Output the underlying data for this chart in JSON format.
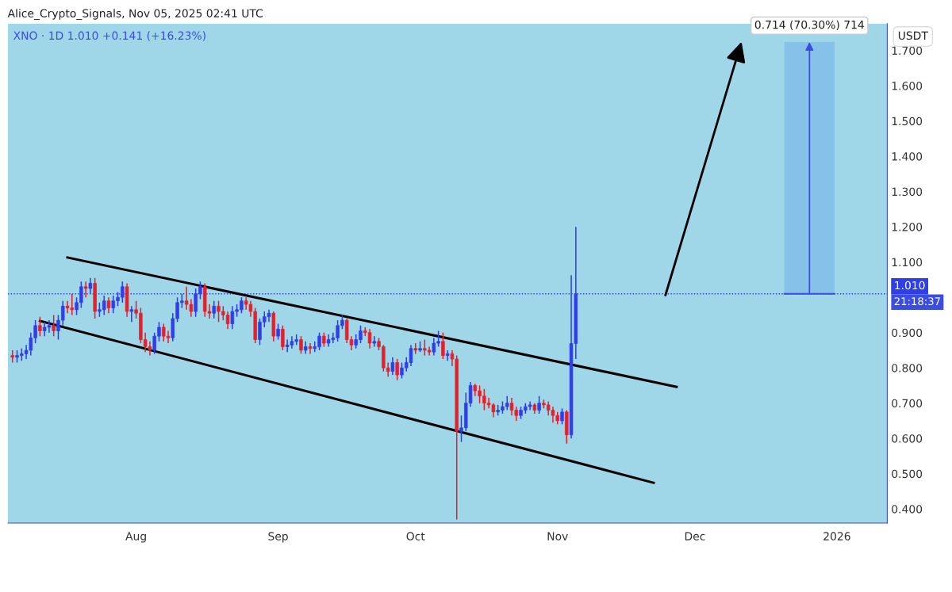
{
  "chart_data": {
    "type": "candlestick",
    "title": "Alice_Crypto_Signals, Nov 05, 2025 02:41 UTC",
    "subtitle": "XNO · 1D 1.010 +0.141 (+16.23%)",
    "ylabel": "USDT",
    "x": [
      "2025-07-05",
      "2025-07-06",
      "2025-07-07",
      "2025-07-08",
      "2025-07-09",
      "2025-07-10",
      "2025-07-11",
      "2025-07-12",
      "2025-07-13",
      "2025-07-14",
      "2025-07-15",
      "2025-07-16",
      "2025-07-17",
      "2025-07-18",
      "2025-07-19",
      "2025-07-20",
      "2025-07-21",
      "2025-07-22",
      "2025-07-23",
      "2025-07-24",
      "2025-07-25",
      "2025-07-26",
      "2025-07-27",
      "2025-07-28",
      "2025-07-29",
      "2025-07-30",
      "2025-07-31",
      "2025-08-01",
      "2025-08-02",
      "2025-08-03",
      "2025-08-04",
      "2025-08-05",
      "2025-08-06",
      "2025-08-07",
      "2025-08-08",
      "2025-08-09",
      "2025-08-10",
      "2025-08-11",
      "2025-08-12",
      "2025-08-13",
      "2025-08-14",
      "2025-08-15",
      "2025-08-16",
      "2025-08-17",
      "2025-08-18",
      "2025-08-19",
      "2025-08-20",
      "2025-08-21",
      "2025-08-22",
      "2025-08-23",
      "2025-08-24",
      "2025-08-25",
      "2025-08-26",
      "2025-08-27",
      "2025-08-28",
      "2025-08-29",
      "2025-08-30",
      "2025-08-31",
      "2025-09-01",
      "2025-09-02",
      "2025-09-03",
      "2025-09-04",
      "2025-09-05",
      "2025-09-06",
      "2025-09-07",
      "2025-09-08",
      "2025-09-09",
      "2025-09-10",
      "2025-09-11",
      "2025-09-12",
      "2025-09-13",
      "2025-09-14",
      "2025-09-15",
      "2025-09-16",
      "2025-09-17",
      "2025-09-18",
      "2025-09-19",
      "2025-09-20",
      "2025-09-21",
      "2025-09-22",
      "2025-09-23",
      "2025-09-24",
      "2025-09-25",
      "2025-09-26",
      "2025-09-27",
      "2025-09-28",
      "2025-09-29",
      "2025-09-30",
      "2025-10-01",
      "2025-10-02",
      "2025-10-03",
      "2025-10-04",
      "2025-10-05",
      "2025-10-06",
      "2025-10-07",
      "2025-10-08",
      "2025-10-09",
      "2025-10-10",
      "2025-10-11",
      "2025-10-12",
      "2025-10-13",
      "2025-10-14",
      "2025-10-15",
      "2025-10-16",
      "2025-10-17",
      "2025-10-18",
      "2025-10-19",
      "2025-10-20",
      "2025-10-21",
      "2025-10-22",
      "2025-10-23",
      "2025-10-24",
      "2025-10-25",
      "2025-10-26",
      "2025-10-27",
      "2025-10-28",
      "2025-10-29",
      "2025-10-30",
      "2025-10-31",
      "2025-11-01",
      "2025-11-02",
      "2025-11-03",
      "2025-11-04",
      "2025-11-05"
    ],
    "ohlc": [
      [
        0.835,
        0.85,
        0.815,
        0.83
      ],
      [
        0.83,
        0.85,
        0.815,
        0.835
      ],
      [
        0.835,
        0.855,
        0.82,
        0.84
      ],
      [
        0.84,
        0.865,
        0.825,
        0.85
      ],
      [
        0.85,
        0.9,
        0.835,
        0.885
      ],
      [
        0.885,
        0.935,
        0.87,
        0.92
      ],
      [
        0.92,
        0.945,
        0.89,
        0.905
      ],
      [
        0.905,
        0.93,
        0.89,
        0.915
      ],
      [
        0.915,
        0.935,
        0.9,
        0.92
      ],
      [
        0.92,
        0.95,
        0.89,
        0.905
      ],
      [
        0.905,
        0.95,
        0.88,
        0.935
      ],
      [
        0.935,
        0.99,
        0.92,
        0.975
      ],
      [
        0.975,
        0.99,
        0.955,
        0.97
      ],
      [
        0.97,
        1.01,
        0.95,
        0.965
      ],
      [
        0.965,
        1.0,
        0.95,
        0.985
      ],
      [
        0.985,
        1.045,
        0.97,
        1.03
      ],
      [
        1.03,
        1.045,
        1.0,
        1.025
      ],
      [
        1.025,
        1.055,
        1.01,
        1.04
      ],
      [
        1.04,
        1.055,
        0.94,
        0.96
      ],
      [
        0.96,
        0.985,
        0.945,
        0.965
      ],
      [
        0.965,
        1.005,
        0.95,
        0.99
      ],
      [
        0.99,
        1.0,
        0.955,
        0.97
      ],
      [
        0.97,
        1.005,
        0.955,
        0.99
      ],
      [
        0.99,
        1.015,
        0.975,
        1.0
      ],
      [
        1.0,
        1.045,
        0.985,
        1.03
      ],
      [
        1.03,
        1.04,
        0.945,
        0.96
      ],
      [
        0.96,
        0.975,
        0.93,
        0.965
      ],
      [
        0.965,
        0.99,
        0.94,
        0.955
      ],
      [
        0.955,
        0.97,
        0.87,
        0.88
      ],
      [
        0.88,
        0.9,
        0.845,
        0.86
      ],
      [
        0.86,
        0.875,
        0.835,
        0.85
      ],
      [
        0.85,
        0.9,
        0.84,
        0.89
      ],
      [
        0.89,
        0.93,
        0.875,
        0.915
      ],
      [
        0.915,
        0.925,
        0.875,
        0.89
      ],
      [
        0.89,
        0.905,
        0.87,
        0.885
      ],
      [
        0.885,
        0.955,
        0.875,
        0.94
      ],
      [
        0.94,
        1.0,
        0.93,
        0.985
      ],
      [
        0.985,
        1.01,
        0.97,
        0.99
      ],
      [
        0.99,
        1.03,
        0.965,
        0.98
      ],
      [
        0.98,
        0.995,
        0.945,
        0.96
      ],
      [
        0.96,
        1.025,
        0.945,
        1.01
      ],
      [
        1.01,
        1.045,
        0.995,
        1.03
      ],
      [
        1.03,
        1.04,
        0.945,
        0.96
      ],
      [
        0.96,
        0.98,
        0.94,
        0.955
      ],
      [
        0.955,
        0.99,
        0.94,
        0.975
      ],
      [
        0.975,
        0.99,
        0.93,
        0.96
      ],
      [
        0.96,
        0.975,
        0.935,
        0.95
      ],
      [
        0.95,
        0.96,
        0.91,
        0.925
      ],
      [
        0.925,
        0.975,
        0.91,
        0.96
      ],
      [
        0.96,
        0.98,
        0.945,
        0.965
      ],
      [
        0.965,
        1.0,
        0.955,
        0.99
      ],
      [
        0.99,
        1.0,
        0.965,
        0.98
      ],
      [
        0.98,
        0.99,
        0.945,
        0.96
      ],
      [
        0.96,
        0.97,
        0.87,
        0.88
      ],
      [
        0.88,
        0.94,
        0.865,
        0.93
      ],
      [
        0.93,
        0.96,
        0.915,
        0.945
      ],
      [
        0.945,
        0.965,
        0.93,
        0.955
      ],
      [
        0.955,
        0.96,
        0.875,
        0.89
      ],
      [
        0.89,
        0.925,
        0.88,
        0.91
      ],
      [
        0.91,
        0.92,
        0.85,
        0.86
      ],
      [
        0.86,
        0.88,
        0.845,
        0.865
      ],
      [
        0.865,
        0.89,
        0.855,
        0.875
      ],
      [
        0.875,
        0.895,
        0.865,
        0.88
      ],
      [
        0.88,
        0.89,
        0.84,
        0.85
      ],
      [
        0.85,
        0.875,
        0.84,
        0.86
      ],
      [
        0.86,
        0.87,
        0.84,
        0.855
      ],
      [
        0.855,
        0.875,
        0.845,
        0.86
      ],
      [
        0.86,
        0.9,
        0.85,
        0.89
      ],
      [
        0.89,
        0.9,
        0.86,
        0.87
      ],
      [
        0.87,
        0.895,
        0.86,
        0.88
      ],
      [
        0.88,
        0.9,
        0.87,
        0.885
      ],
      [
        0.885,
        0.935,
        0.875,
        0.92
      ],
      [
        0.92,
        0.95,
        0.91,
        0.935
      ],
      [
        0.935,
        0.94,
        0.87,
        0.88
      ],
      [
        0.88,
        0.89,
        0.85,
        0.865
      ],
      [
        0.865,
        0.895,
        0.855,
        0.88
      ],
      [
        0.88,
        0.92,
        0.87,
        0.905
      ],
      [
        0.905,
        0.915,
        0.89,
        0.9
      ],
      [
        0.9,
        0.91,
        0.855,
        0.87
      ],
      [
        0.87,
        0.89,
        0.86,
        0.875
      ],
      [
        0.875,
        0.885,
        0.85,
        0.86
      ],
      [
        0.86,
        0.865,
        0.79,
        0.8
      ],
      [
        0.8,
        0.815,
        0.775,
        0.79
      ],
      [
        0.79,
        0.83,
        0.78,
        0.815
      ],
      [
        0.815,
        0.825,
        0.765,
        0.78
      ],
      [
        0.78,
        0.815,
        0.77,
        0.8
      ],
      [
        0.8,
        0.83,
        0.79,
        0.815
      ],
      [
        0.815,
        0.865,
        0.805,
        0.855
      ],
      [
        0.855,
        0.87,
        0.84,
        0.85
      ],
      [
        0.85,
        0.875,
        0.845,
        0.855
      ],
      [
        0.855,
        0.88,
        0.835,
        0.85
      ],
      [
        0.85,
        0.86,
        0.835,
        0.845
      ],
      [
        0.845,
        0.885,
        0.835,
        0.87
      ],
      [
        0.87,
        0.905,
        0.86,
        0.875
      ],
      [
        0.875,
        0.9,
        0.825,
        0.835
      ],
      [
        0.835,
        0.85,
        0.82,
        0.84
      ],
      [
        0.84,
        0.85,
        0.805,
        0.825
      ],
      [
        0.825,
        0.835,
        0.37,
        0.62
      ],
      [
        0.62,
        0.665,
        0.59,
        0.63
      ],
      [
        0.63,
        0.73,
        0.62,
        0.7
      ],
      [
        0.7,
        0.76,
        0.69,
        0.75
      ],
      [
        0.75,
        0.755,
        0.72,
        0.735
      ],
      [
        0.735,
        0.75,
        0.7,
        0.72
      ],
      [
        0.72,
        0.74,
        0.68,
        0.7
      ],
      [
        0.7,
        0.715,
        0.685,
        0.695
      ],
      [
        0.695,
        0.7,
        0.66,
        0.675
      ],
      [
        0.675,
        0.695,
        0.665,
        0.68
      ],
      [
        0.68,
        0.705,
        0.67,
        0.69
      ],
      [
        0.69,
        0.72,
        0.68,
        0.7
      ],
      [
        0.7,
        0.715,
        0.665,
        0.68
      ],
      [
        0.68,
        0.69,
        0.65,
        0.665
      ],
      [
        0.665,
        0.69,
        0.655,
        0.68
      ],
      [
        0.68,
        0.7,
        0.67,
        0.69
      ],
      [
        0.69,
        0.705,
        0.68,
        0.695
      ],
      [
        0.695,
        0.7,
        0.67,
        0.68
      ],
      [
        0.68,
        0.72,
        0.67,
        0.7
      ],
      [
        0.7,
        0.71,
        0.685,
        0.695
      ],
      [
        0.695,
        0.705,
        0.665,
        0.68
      ],
      [
        0.68,
        0.69,
        0.645,
        0.665
      ],
      [
        0.665,
        0.675,
        0.64,
        0.65
      ],
      [
        0.65,
        0.685,
        0.64,
        0.675
      ],
      [
        0.675,
        0.68,
        0.585,
        0.61
      ],
      [
        0.61,
        1.063,
        0.6,
        0.869
      ],
      [
        0.869,
        1.2,
        0.825,
        1.01
      ]
    ],
    "colors": [
      "#e4212b",
      "#2f3fe8",
      "#2f3fe8",
      "#2f3fe8",
      "#2f3fe8",
      "#2f3fe8",
      "#e4212b",
      "#2f3fe8",
      "#2f3fe8",
      "#e4212b",
      "#2f3fe8",
      "#2f3fe8",
      "#e4212b",
      "#e4212b",
      "#2f3fe8",
      "#2f3fe8",
      "#e4212b",
      "#2f3fe8",
      "#e4212b",
      "#2f3fe8",
      "#2f3fe8",
      "#e4212b",
      "#2f3fe8",
      "#2f3fe8",
      "#2f3fe8",
      "#e4212b",
      "#2f3fe8",
      "#e4212b",
      "#e4212b",
      "#e4212b",
      "#e4212b",
      "#2f3fe8",
      "#2f3fe8",
      "#e4212b",
      "#e4212b",
      "#2f3fe8",
      "#2f3fe8",
      "#2f3fe8",
      "#e4212b",
      "#e4212b",
      "#2f3fe8",
      "#2f3fe8",
      "#e4212b",
      "#e4212b",
      "#2f3fe8",
      "#e4212b",
      "#e4212b",
      "#e4212b",
      "#2f3fe8",
      "#2f3fe8",
      "#2f3fe8",
      "#e4212b",
      "#e4212b",
      "#e4212b",
      "#2f3fe8",
      "#2f3fe8",
      "#2f3fe8",
      "#e4212b",
      "#2f3fe8",
      "#e4212b",
      "#2f3fe8",
      "#2f3fe8",
      "#2f3fe8",
      "#e4212b",
      "#2f3fe8",
      "#e4212b",
      "#2f3fe8",
      "#2f3fe8",
      "#e4212b",
      "#2f3fe8",
      "#2f3fe8",
      "#2f3fe8",
      "#2f3fe8",
      "#e4212b",
      "#e4212b",
      "#2f3fe8",
      "#2f3fe8",
      "#e4212b",
      "#e4212b",
      "#2f3fe8",
      "#e4212b",
      "#e4212b",
      "#e4212b",
      "#2f3fe8",
      "#e4212b",
      "#2f3fe8",
      "#2f3fe8",
      "#2f3fe8",
      "#e4212b",
      "#2f3fe8",
      "#e4212b",
      "#e4212b",
      "#2f3fe8",
      "#2f3fe8",
      "#e4212b",
      "#2f3fe8",
      "#e4212b",
      "#e4212b",
      "#2f3fe8",
      "#2f3fe8",
      "#2f3fe8",
      "#e4212b",
      "#e4212b",
      "#e4212b",
      "#e4212b",
      "#e4212b",
      "#2f3fe8",
      "#2f3fe8",
      "#2f3fe8",
      "#e4212b",
      "#e4212b",
      "#2f3fe8",
      "#2f3fe8",
      "#2f3fe8",
      "#e4212b",
      "#2f3fe8",
      "#e4212b",
      "#e4212b",
      "#e4212b",
      "#e4212b",
      "#2f3fe8",
      "#e4212b",
      "#2f3fe8",
      "#2f3fe8"
    ],
    "series": [
      {
        "type": "line",
        "color": "#000000",
        "x": [
          "2025-07-17",
          "2025-11-27"
        ],
        "values": [
          1.113,
          0.746
        ]
      },
      {
        "type": "line",
        "color": "#000000",
        "x": [
          "2025-07-11",
          "2025-11-22"
        ],
        "values": [
          0.933,
          0.474
        ]
      }
    ],
    "xlim": [
      "2025-07-04",
      "2026-01-12"
    ],
    "xticks": [
      {
        "value": "2025-08-01",
        "label": "Aug"
      },
      {
        "value": "2025-09-01",
        "label": "Sep"
      },
      {
        "value": "2025-10-01",
        "label": "Oct"
      },
      {
        "value": "2025-11-01",
        "label": "Nov"
      },
      {
        "value": "2025-12-01",
        "label": "Dec"
      },
      {
        "value": "2026-01-01",
        "label": "2026"
      }
    ],
    "ylim": [
      0.36,
      1.776
    ],
    "yticks": [
      {
        "value": 0.4,
        "label": "0.400"
      },
      {
        "value": 0.5,
        "label": "0.500"
      },
      {
        "value": 0.6,
        "label": "0.600"
      },
      {
        "value": 0.7,
        "label": "0.700"
      },
      {
        "value": 0.8,
        "label": "0.800"
      },
      {
        "value": 0.9,
        "label": "0.900"
      },
      {
        "value": 1.1,
        "label": "1.100"
      },
      {
        "value": 1.2,
        "label": "1.200"
      },
      {
        "value": 1.3,
        "label": "1.300"
      },
      {
        "value": 1.4,
        "label": "1.400"
      },
      {
        "value": 1.5,
        "label": "1.500"
      },
      {
        "value": 1.6,
        "label": "1.600"
      },
      {
        "value": 1.7,
        "label": "1.700"
      }
    ],
    "ref_lines": [
      {
        "axis": "y",
        "value": 1.01,
        "label": "1.010",
        "color": "#2f3fe8",
        "line_style": "dotted"
      }
    ],
    "bands": [
      {
        "axis": "y",
        "from": 1.01,
        "to": 1.724,
        "label": "0.714 (70.30%) 714",
        "color": "#7ab8e8"
      }
    ],
    "annotations": [
      "21:18:37"
    ]
  }
}
